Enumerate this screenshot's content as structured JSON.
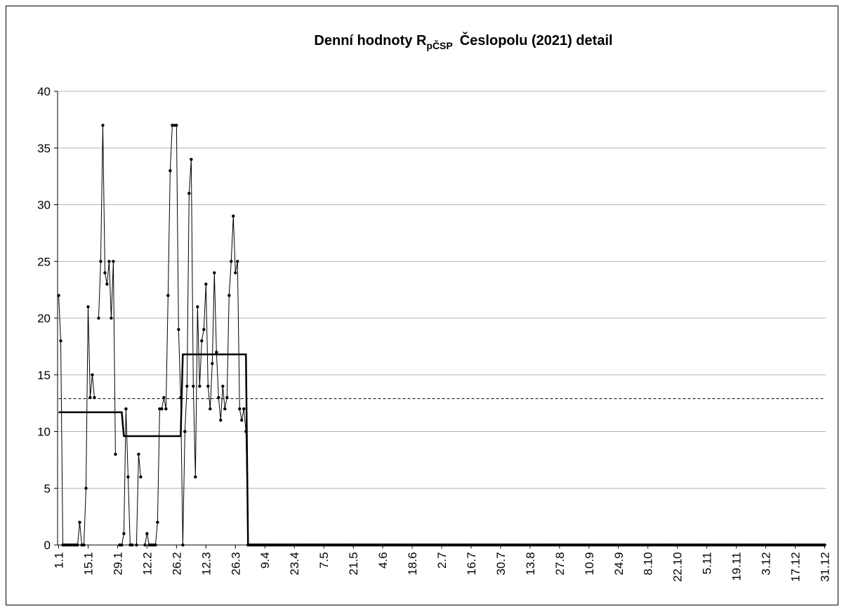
{
  "chart_data": {
    "type": "line",
    "title": {
      "main": "Denní hodnoty R",
      "subscript": "pČSP",
      "rest": "Česlopolu (2021) detail"
    },
    "categories": [
      "1.1",
      null,
      null,
      null,
      null,
      null,
      null,
      null,
      null,
      null,
      null,
      null,
      null,
      null,
      "15.1",
      null,
      null,
      null,
      null,
      null,
      null,
      null,
      null,
      null,
      null,
      null,
      null,
      null,
      "29.1",
      null,
      null,
      null,
      null,
      null,
      null,
      null,
      null,
      null,
      null,
      null,
      null,
      null,
      "12.2",
      null,
      null,
      null,
      null,
      null,
      null,
      null,
      null,
      null,
      null,
      null,
      null,
      null,
      "26.2",
      null,
      null,
      null,
      null,
      null,
      null,
      null,
      null,
      null,
      null,
      null,
      null,
      null,
      "12.3",
      null,
      null,
      null,
      null,
      null,
      null,
      null,
      null,
      null,
      null,
      null,
      null,
      null,
      "26.3",
      null,
      null,
      null,
      null,
      null,
      null,
      null,
      null,
      null,
      null,
      null,
      null,
      null,
      "9.4",
      null,
      null,
      null,
      null,
      null,
      null,
      null,
      null,
      null,
      null,
      null,
      null,
      null,
      "23.4",
      null,
      null,
      null,
      null,
      null,
      null,
      null,
      null,
      null,
      null,
      null,
      null,
      null,
      "7.5",
      null,
      null,
      null,
      null,
      null,
      null,
      null,
      null,
      null,
      null,
      null,
      null,
      null,
      "21.5",
      null,
      null,
      null,
      null,
      null,
      null,
      null,
      null,
      null,
      null,
      null,
      null,
      null,
      "4.6",
      null,
      null,
      null,
      null,
      null,
      null,
      null,
      null,
      null,
      null,
      null,
      null,
      null,
      "18.6",
      null,
      null,
      null,
      null,
      null,
      null,
      null,
      null,
      null,
      null,
      null,
      null,
      null,
      "2.7",
      null,
      null,
      null,
      null,
      null,
      null,
      null,
      null,
      null,
      null,
      null,
      null,
      null,
      "16.7",
      null,
      null,
      null,
      null,
      null,
      null,
      null,
      null,
      null,
      null,
      null,
      null,
      null,
      "30.7",
      null,
      null,
      null,
      null,
      null,
      null,
      null,
      null,
      null,
      null,
      null,
      null,
      null,
      "13.8",
      null,
      null,
      null,
      null,
      null,
      null,
      null,
      null,
      null,
      null,
      null,
      null,
      null,
      "27.8",
      null,
      null,
      null,
      null,
      null,
      null,
      null,
      null,
      null,
      null,
      null,
      null,
      null,
      "10.9",
      null,
      null,
      null,
      null,
      null,
      null,
      null,
      null,
      null,
      null,
      null,
      null,
      null,
      "24.9",
      null,
      null,
      null,
      null,
      null,
      null,
      null,
      null,
      null,
      null,
      null,
      null,
      null,
      "8.10",
      null,
      null,
      null,
      null,
      null,
      null,
      null,
      null,
      null,
      null,
      null,
      null,
      null,
      "22.10",
      null,
      null,
      null,
      null,
      null,
      null,
      null,
      null,
      null,
      null,
      null,
      null,
      null,
      "5.11",
      null,
      null,
      null,
      null,
      null,
      null,
      null,
      null,
      null,
      null,
      null,
      null,
      null,
      "19.11",
      null,
      null,
      null,
      null,
      null,
      null,
      null,
      null,
      null,
      null,
      null,
      null,
      null,
      "3.12",
      null,
      null,
      null,
      null,
      null,
      null,
      null,
      null,
      null,
      null,
      null,
      null,
      null,
      "17.12",
      null,
      null,
      null,
      null,
      null,
      null,
      null,
      null,
      null,
      null,
      null,
      null,
      null,
      "31.12"
    ],
    "series": [
      {
        "color": "#000000",
        "markers": true,
        "width": 1,
        "values": [
          22,
          18,
          0,
          0,
          0,
          0,
          0,
          0,
          0,
          0,
          2,
          0,
          0,
          5,
          21,
          13,
          15,
          13,
          null,
          20,
          25,
          37,
          24,
          23,
          25,
          20,
          25,
          8,
          null,
          0,
          0,
          1,
          12,
          6,
          0,
          0,
          null,
          0,
          8,
          6,
          null,
          0,
          1,
          0,
          0,
          0,
          0,
          2,
          12,
          12,
          13,
          12,
          22,
          33,
          37,
          37,
          37,
          19,
          13,
          0,
          10,
          14,
          31,
          34,
          14,
          6,
          21,
          14,
          18,
          19,
          23,
          14,
          12,
          16,
          24,
          17,
          13,
          11,
          14,
          12,
          13,
          22,
          25,
          29,
          24,
          25,
          12,
          11,
          12,
          10,
          0,
          0,
          0,
          0,
          0,
          0,
          0,
          0,
          0,
          0,
          0,
          0,
          0,
          0,
          0,
          0,
          0,
          0,
          0,
          0,
          0,
          0,
          0,
          0,
          0,
          0,
          0,
          0,
          0,
          0,
          0,
          0,
          0,
          0,
          0,
          0,
          0,
          0,
          0,
          0,
          0,
          0,
          0,
          0,
          0,
          0,
          0,
          0,
          0,
          0,
          0,
          0,
          0,
          0,
          0,
          0,
          0,
          0,
          0,
          0,
          0,
          0,
          0,
          0,
          0,
          0,
          0,
          0,
          0,
          0,
          0,
          0,
          0,
          0,
          0,
          0,
          0,
          0,
          0,
          0,
          0,
          0,
          0,
          0,
          0,
          0,
          0,
          0,
          0,
          0,
          0,
          0,
          0,
          0,
          0,
          0,
          0,
          0,
          0,
          0,
          0,
          0,
          0,
          0,
          0,
          0,
          0,
          0,
          0,
          0,
          0,
          0,
          0,
          0,
          0,
          0,
          0,
          0,
          0,
          0,
          0,
          0,
          0,
          0,
          0,
          0,
          0,
          0,
          0,
          0,
          0,
          0,
          0,
          0,
          0,
          0,
          0,
          0,
          0,
          0,
          0,
          0,
          0,
          0,
          0,
          0,
          0,
          0,
          0,
          0,
          0,
          0,
          0,
          0,
          0,
          0,
          0,
          0,
          0,
          0,
          0,
          0,
          0,
          0,
          0,
          0,
          0,
          0,
          0,
          0,
          0,
          0,
          0,
          0,
          0,
          0,
          0,
          0,
          0,
          0,
          0,
          0,
          0,
          0,
          0,
          0,
          0,
          0,
          0,
          0,
          0,
          0,
          0,
          0,
          0,
          0,
          0,
          0,
          0,
          0,
          0,
          0,
          0,
          0,
          0,
          0,
          0,
          0,
          0,
          0,
          0,
          0,
          0,
          0,
          0,
          0,
          0,
          0,
          0,
          0,
          0,
          0,
          0,
          0,
          0,
          0,
          0,
          0,
          0,
          0,
          0,
          0,
          0,
          0,
          0,
          0,
          0,
          0,
          0,
          0,
          0,
          0,
          0,
          0,
          0,
          0,
          0,
          0,
          0,
          0,
          0,
          0,
          0,
          0,
          0,
          0,
          0,
          0,
          0,
          0,
          0,
          0,
          0,
          0,
          0,
          0,
          0,
          0,
          0,
          0,
          0,
          0,
          0,
          0,
          0
        ]
      },
      {
        "color": "#000000",
        "markers": false,
        "width": 2.5,
        "values": [
          11.7,
          11.7,
          11.7,
          11.7,
          11.7,
          11.7,
          11.7,
          11.7,
          11.7,
          11.7,
          11.7,
          11.7,
          11.7,
          11.7,
          11.7,
          11.7,
          11.7,
          11.7,
          11.7,
          11.7,
          11.7,
          11.7,
          11.7,
          11.7,
          11.7,
          11.7,
          11.7,
          11.7,
          11.7,
          11.7,
          11.7,
          9.6,
          9.6,
          9.6,
          9.6,
          9.6,
          9.6,
          9.6,
          9.6,
          9.6,
          9.6,
          9.6,
          9.6,
          9.6,
          9.6,
          9.6,
          9.6,
          9.6,
          9.6,
          9.6,
          9.6,
          9.6,
          9.6,
          9.6,
          9.6,
          9.6,
          9.6,
          9.6,
          9.6,
          16.8,
          16.8,
          16.8,
          16.8,
          16.8,
          16.8,
          16.8,
          16.8,
          16.8,
          16.8,
          16.8,
          16.8,
          16.8,
          16.8,
          16.8,
          16.8,
          16.8,
          16.8,
          16.8,
          16.8,
          16.8,
          16.8,
          16.8,
          16.8,
          16.8,
          16.8,
          16.8,
          16.8,
          16.8,
          16.8,
          16.8,
          0,
          0,
          0,
          0,
          0,
          0,
          0,
          0,
          0,
          0,
          0,
          0,
          0,
          0,
          0,
          0,
          0,
          0,
          0,
          0,
          0,
          0,
          0,
          0,
          0,
          0,
          0,
          0,
          0,
          0,
          0,
          0,
          0,
          0,
          0,
          0,
          0,
          0,
          0,
          0,
          0,
          0,
          0,
          0,
          0,
          0,
          0,
          0,
          0,
          0,
          0,
          0,
          0,
          0,
          0,
          0,
          0,
          0,
          0,
          0,
          0,
          0,
          0,
          0,
          0,
          0,
          0,
          0,
          0,
          0,
          0,
          0,
          0,
          0,
          0,
          0,
          0,
          0,
          0,
          0,
          0,
          0,
          0,
          0,
          0,
          0,
          0,
          0,
          0,
          0,
          0,
          0,
          0,
          0,
          0,
          0,
          0,
          0,
          0,
          0,
          0,
          0,
          0,
          0,
          0,
          0,
          0,
          0,
          0,
          0,
          0,
          0,
          0,
          0,
          0,
          0,
          0,
          0,
          0,
          0,
          0,
          0,
          0,
          0,
          0,
          0,
          0,
          0,
          0,
          0,
          0,
          0,
          0,
          0,
          0,
          0,
          0,
          0,
          0,
          0,
          0,
          0,
          0,
          0,
          0,
          0,
          0,
          0,
          0,
          0,
          0,
          0,
          0,
          0,
          0,
          0,
          0,
          0,
          0,
          0,
          0,
          0,
          0,
          0,
          0,
          0,
          0,
          0,
          0,
          0,
          0,
          0,
          0,
          0,
          0,
          0,
          0,
          0,
          0,
          0,
          0,
          0,
          0,
          0,
          0,
          0,
          0,
          0,
          0,
          0,
          0,
          0,
          0,
          0,
          0,
          0,
          0,
          0,
          0,
          0,
          0,
          0,
          0,
          0,
          0,
          0,
          0,
          0,
          0,
          0,
          0,
          0,
          0,
          0,
          0,
          0,
          0,
          0,
          0,
          0,
          0,
          0,
          0,
          0,
          0,
          0,
          0,
          0,
          0,
          0,
          0,
          0,
          0,
          0,
          0,
          0,
          0,
          0,
          0,
          0,
          0,
          0,
          0,
          0,
          0,
          0,
          0,
          0,
          0,
          0,
          0,
          0,
          0,
          0,
          0,
          0,
          0,
          0,
          0,
          0,
          0,
          0,
          0,
          0,
          0,
          0,
          0,
          0,
          0,
          0,
          0,
          0,
          0,
          0,
          0
        ]
      }
    ],
    "reference_line": {
      "value": 12.9,
      "style": "dashed",
      "color": "#000000"
    },
    "ylim": [
      0,
      40
    ],
    "yticks": [
      0,
      5,
      10,
      15,
      20,
      25,
      30,
      35,
      40
    ],
    "grid": true
  }
}
